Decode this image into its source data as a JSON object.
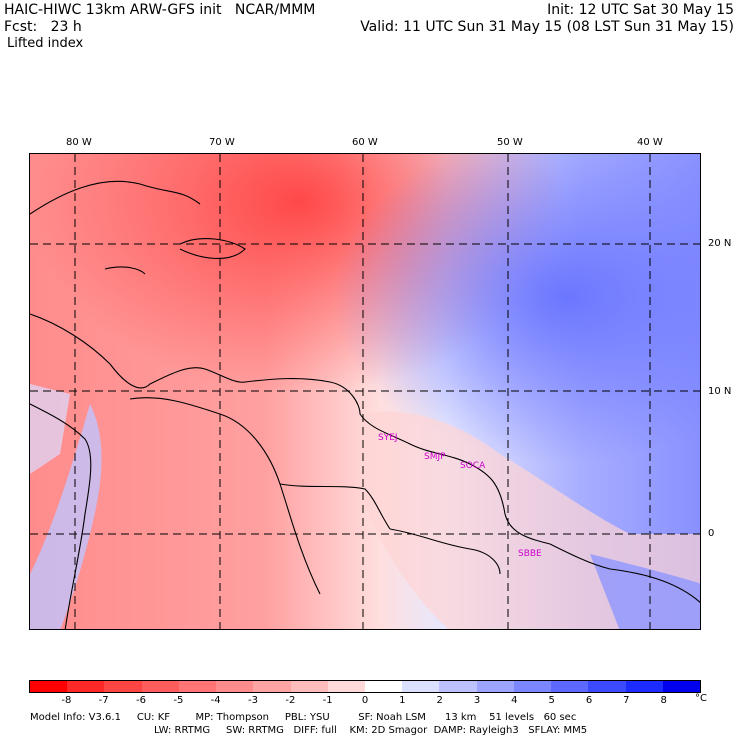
{
  "header": {
    "line1_left": "HAIC-HIWC 13km ARW-GFS init   NCAR/MMM",
    "line1_right": "Init: 12 UTC Sat 30 May 15",
    "line2_left": "Fcst:   23 h",
    "line2_right": "Valid: 11 UTC Sun 31 May 15 (08 LST Sun 31 May 15)",
    "line3_left": "Lifted index"
  },
  "map": {
    "lon_labels": [
      "80 W",
      "70 W",
      "60 W",
      "50 W",
      "40 W"
    ],
    "lat_labels": [
      "20 N",
      "10 N",
      "0"
    ],
    "stations": [
      "SYEJ",
      "SMJP",
      "SOCA",
      "SBBE"
    ]
  },
  "colorbar": {
    "tick_labels": [
      "-8",
      "-7",
      "-6",
      "-5",
      "-4",
      "-3",
      "-2",
      "-1",
      "0",
      "1",
      "2",
      "3",
      "4",
      "5",
      "6",
      "7",
      "8"
    ],
    "unit": "°C",
    "colors": [
      "#ff0000",
      "#ff2828",
      "#ff4444",
      "#ff5c5c",
      "#ff7474",
      "#ff8c8c",
      "#ffa4a4",
      "#ffbcbc",
      "#ffd8d8",
      "#ffffff",
      "#dce0ff",
      "#bcc2ff",
      "#9ca4ff",
      "#7c86ff",
      "#5c68ff",
      "#3c4aff",
      "#1c2cff",
      "#0000ee"
    ]
  },
  "model_info": {
    "line1": "Model Info: V3.6.1     CU: KF        MP: Thompson     PBL: YSU         SF: Noah LSM      13 km    51 levels   60 sec",
    "line2": "LW: RRTMG     SW: RRTMG   DIFF: full    KM: 2D Smagor  DAMP: Rayleigh3   SFLAY: MM5"
  }
}
